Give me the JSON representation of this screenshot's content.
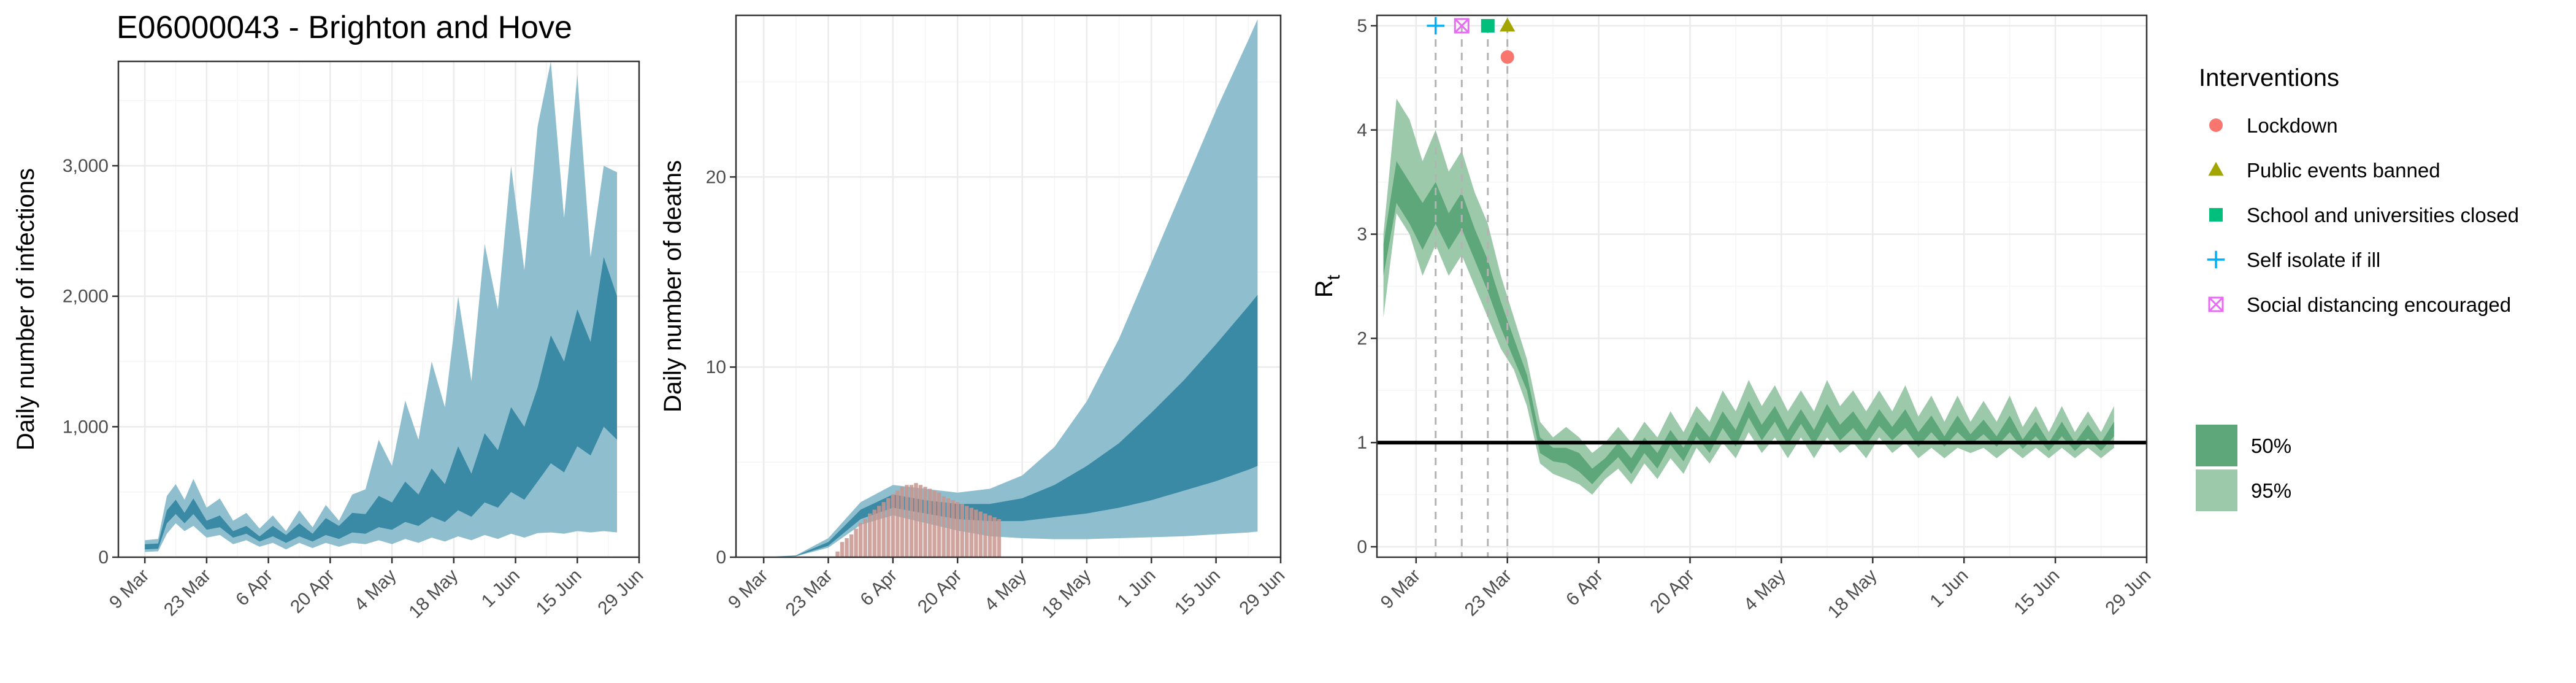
{
  "page_title": "E06000043 - Brighton and Hove",
  "colors": {
    "infections_band_95": "#8fbfcf",
    "infections_band_50": "#3a8aa6",
    "deaths_bar": "#c9958e",
    "rt_band_95": "#9cc9a9",
    "rt_band_50": "#5ea77a",
    "threshold_line": "#000000",
    "lockdown": "#F8766D",
    "public_events": "#A3A500",
    "school": "#00BF7D",
    "self_isolate": "#00B0F6",
    "social_distancing": "#E76BF3"
  },
  "chart_data": [
    {
      "id": "infections",
      "type": "area",
      "title": "E06000043 - Brighton and Hove",
      "xlabel": "",
      "ylabel": "Daily number of infections",
      "x_ticks": [
        "9 Mar",
        "23 Mar",
        "6 Apr",
        "20 Apr",
        "4 May",
        "18 May",
        "1 Jun",
        "15 Jun",
        "29 Jun"
      ],
      "xlim_days": [
        -6,
        112
      ],
      "y_ticks": [
        0,
        1000,
        2000,
        3000
      ],
      "y_tick_labels": [
        "0",
        "1,000",
        "2,000",
        "3,000"
      ],
      "ylim": [
        0,
        3800
      ],
      "series": [
        {
          "band": "95%",
          "x_days": [
            0,
            3,
            5,
            7,
            9,
            11,
            14,
            17,
            20,
            23,
            26,
            29,
            32,
            35,
            38,
            41,
            44,
            47,
            50,
            53,
            56,
            59,
            62,
            65,
            68,
            71,
            74,
            77,
            80,
            83,
            86,
            89,
            92,
            95,
            98,
            101,
            104,
            107
          ],
          "upper": [
            130,
            140,
            470,
            560,
            440,
            600,
            380,
            450,
            280,
            340,
            220,
            320,
            200,
            360,
            230,
            400,
            280,
            480,
            520,
            900,
            700,
            1200,
            900,
            1500,
            1150,
            2000,
            1350,
            2400,
            1900,
            3000,
            2200,
            3300,
            3800,
            2600,
            3700,
            2300,
            3000,
            2950
          ],
          "lower": [
            40,
            45,
            180,
            260,
            200,
            240,
            150,
            170,
            100,
            130,
            80,
            110,
            60,
            110,
            70,
            110,
            80,
            110,
            100,
            130,
            100,
            140,
            110,
            150,
            120,
            160,
            130,
            170,
            140,
            180,
            150,
            185,
            190,
            180,
            200,
            190,
            200,
            190
          ]
        },
        {
          "band": "50%",
          "x_days": [
            0,
            3,
            5,
            7,
            9,
            11,
            14,
            17,
            20,
            23,
            26,
            29,
            32,
            35,
            38,
            41,
            44,
            47,
            50,
            53,
            56,
            59,
            62,
            65,
            68,
            71,
            74,
            77,
            80,
            83,
            86,
            89,
            92,
            95,
            98,
            101,
            104,
            107
          ],
          "upper": [
            100,
            105,
            360,
            440,
            340,
            450,
            280,
            320,
            200,
            240,
            160,
            240,
            170,
            260,
            180,
            300,
            240,
            340,
            330,
            470,
            420,
            580,
            480,
            680,
            560,
            850,
            640,
            950,
            820,
            1150,
            1000,
            1300,
            1700,
            1500,
            1900,
            1650,
            2300,
            2000
          ],
          "lower": [
            60,
            65,
            260,
            330,
            260,
            330,
            210,
            230,
            150,
            180,
            120,
            160,
            110,
            160,
            120,
            170,
            140,
            190,
            180,
            230,
            210,
            270,
            240,
            310,
            270,
            360,
            310,
            420,
            380,
            500,
            440,
            580,
            720,
            650,
            850,
            780,
            1000,
            900
          ]
        }
      ]
    },
    {
      "id": "deaths",
      "type": "area",
      "xlabel": "",
      "ylabel": "Daily number of deaths",
      "x_ticks": [
        "9 Mar",
        "23 Mar",
        "6 Apr",
        "20 Apr",
        "4 May",
        "18 May",
        "1 Jun",
        "15 Jun",
        "29 Jun"
      ],
      "xlim_days": [
        -6,
        112
      ],
      "y_ticks": [
        0,
        10,
        20
      ],
      "y_tick_labels": [
        "0",
        "10",
        "20"
      ],
      "ylim": [
        0,
        28.5
      ],
      "series": [
        {
          "band": "95%",
          "x_days": [
            0,
            7,
            14,
            21,
            28,
            35,
            42,
            49,
            56,
            63,
            70,
            77,
            84,
            91,
            98,
            105,
            107
          ],
          "upper": [
            0,
            0.1,
            1.0,
            2.9,
            3.8,
            3.6,
            3.4,
            3.6,
            4.3,
            5.8,
            8.2,
            11.5,
            15.5,
            19.5,
            23.5,
            27.2,
            28.3
          ],
          "lower": [
            0,
            0.05,
            0.5,
            1.7,
            2.2,
            1.8,
            1.4,
            1.1,
            1.0,
            0.95,
            0.95,
            1.0,
            1.05,
            1.1,
            1.2,
            1.3,
            1.35
          ]
        },
        {
          "band": "50%",
          "x_days": [
            0,
            7,
            14,
            21,
            28,
            35,
            42,
            49,
            56,
            63,
            70,
            77,
            84,
            91,
            98,
            105,
            107
          ],
          "upper": [
            0,
            0.08,
            0.8,
            2.5,
            3.3,
            3.0,
            2.8,
            2.8,
            3.1,
            3.8,
            4.8,
            6.0,
            7.6,
            9.3,
            11.2,
            13.2,
            13.8
          ],
          "lower": [
            0,
            0.06,
            0.6,
            2.0,
            2.6,
            2.3,
            2.0,
            1.9,
            1.9,
            2.1,
            2.3,
            2.6,
            3.0,
            3.5,
            4.0,
            4.6,
            4.8
          ]
        }
      ],
      "observed_deaths": {
        "x_days": [
          16,
          17,
          18,
          19,
          20,
          21,
          22,
          23,
          24,
          25,
          26,
          27,
          28,
          29,
          30,
          31,
          32,
          33,
          34,
          35,
          36,
          37,
          38,
          39,
          40,
          41,
          42,
          43,
          44,
          45,
          46,
          47,
          48,
          49,
          50,
          51
        ],
        "values": [
          0.3,
          0.8,
          1.0,
          1.2,
          1.5,
          1.8,
          2.0,
          2.3,
          2.5,
          2.7,
          2.9,
          3.1,
          3.3,
          3.5,
          3.7,
          3.8,
          3.8,
          3.9,
          3.8,
          3.7,
          3.6,
          3.5,
          3.4,
          3.2,
          3.1,
          3.0,
          2.9,
          2.8,
          2.7,
          2.6,
          2.5,
          2.4,
          2.3,
          2.2,
          2.1,
          2.0
        ]
      }
    },
    {
      "id": "rt",
      "type": "area",
      "xlabel": "",
      "ylabel_main": "R",
      "ylabel_sub": "t",
      "x_ticks": [
        "9 Mar",
        "23 Mar",
        "6 Apr",
        "20 Apr",
        "4 May",
        "18 May",
        "1 Jun",
        "15 Jun",
        "29 Jun"
      ],
      "xlim_days": [
        -6,
        112
      ],
      "y_ticks": [
        0,
        1,
        2,
        3,
        4,
        5
      ],
      "y_tick_labels": [
        "0",
        "1",
        "2",
        "3",
        "4",
        "5"
      ],
      "ylim": [
        -0.1,
        5.1
      ],
      "threshold": 1,
      "series": [
        {
          "band": "95%",
          "x_days": [
            -5,
            -3,
            -1,
            1,
            3,
            5,
            7,
            9,
            11,
            13,
            15,
            17,
            19,
            21,
            23,
            25,
            27,
            29,
            31,
            33,
            35,
            37,
            39,
            41,
            43,
            45,
            47,
            49,
            51,
            53,
            55,
            57,
            59,
            61,
            63,
            65,
            67,
            69,
            71,
            73,
            75,
            77,
            79,
            81,
            83,
            85,
            87,
            89,
            91,
            93,
            95,
            97,
            99,
            101,
            103,
            105,
            107
          ],
          "upper": [
            3.0,
            4.3,
            4.1,
            3.7,
            4.0,
            3.6,
            3.8,
            3.4,
            3.1,
            2.6,
            2.2,
            1.8,
            1.2,
            1.05,
            1.15,
            1.05,
            0.9,
            1.0,
            1.15,
            1.0,
            1.2,
            1.05,
            1.3,
            1.1,
            1.35,
            1.2,
            1.5,
            1.3,
            1.6,
            1.35,
            1.55,
            1.3,
            1.5,
            1.3,
            1.6,
            1.35,
            1.5,
            1.3,
            1.5,
            1.3,
            1.55,
            1.25,
            1.45,
            1.2,
            1.45,
            1.2,
            1.4,
            1.2,
            1.45,
            1.15,
            1.35,
            1.1,
            1.35,
            1.1,
            1.3,
            1.1,
            1.35
          ],
          "lower": [
            2.2,
            3.2,
            3.0,
            2.6,
            2.9,
            2.6,
            2.8,
            2.5,
            2.2,
            1.9,
            1.7,
            1.35,
            0.8,
            0.7,
            0.65,
            0.6,
            0.5,
            0.65,
            0.75,
            0.6,
            0.8,
            0.65,
            0.85,
            0.7,
            0.95,
            0.8,
            1.0,
            0.85,
            1.1,
            0.9,
            1.05,
            0.85,
            1.05,
            0.85,
            1.05,
            0.9,
            1.0,
            0.85,
            1.05,
            0.9,
            1.0,
            0.85,
            0.95,
            0.85,
            0.95,
            0.9,
            0.95,
            0.85,
            0.95,
            0.85,
            0.95,
            0.85,
            0.95,
            0.85,
            0.95,
            0.85,
            0.95
          ]
        },
        {
          "band": "50%",
          "x_days": [
            -5,
            -3,
            -1,
            1,
            3,
            5,
            7,
            9,
            11,
            13,
            15,
            17,
            19,
            21,
            23,
            25,
            27,
            29,
            31,
            33,
            35,
            37,
            39,
            41,
            43,
            45,
            47,
            49,
            51,
            53,
            55,
            57,
            59,
            61,
            63,
            65,
            67,
            69,
            71,
            73,
            75,
            77,
            79,
            81,
            83,
            85,
            87,
            89,
            91,
            93,
            95,
            97,
            99,
            101,
            103,
            105,
            107
          ],
          "upper": [
            2.9,
            3.7,
            3.5,
            3.3,
            3.5,
            3.2,
            3.4,
            3.05,
            2.75,
            2.35,
            2.0,
            1.65,
            1.05,
            0.95,
            0.95,
            0.9,
            0.75,
            0.85,
            1.0,
            0.85,
            1.05,
            0.9,
            1.12,
            0.95,
            1.2,
            1.05,
            1.3,
            1.12,
            1.4,
            1.17,
            1.35,
            1.12,
            1.32,
            1.12,
            1.37,
            1.17,
            1.3,
            1.12,
            1.32,
            1.15,
            1.32,
            1.1,
            1.26,
            1.06,
            1.26,
            1.08,
            1.22,
            1.06,
            1.26,
            1.03,
            1.2,
            1.0,
            1.2,
            1.0,
            1.17,
            1.0,
            1.2
          ],
          "lower": [
            2.6,
            3.3,
            3.1,
            2.85,
            3.1,
            2.85,
            3.05,
            2.75,
            2.45,
            2.1,
            1.8,
            1.5,
            0.9,
            0.82,
            0.8,
            0.72,
            0.6,
            0.74,
            0.86,
            0.7,
            0.9,
            0.75,
            0.98,
            0.82,
            1.06,
            0.9,
            1.14,
            0.96,
            1.24,
            1.02,
            1.2,
            0.98,
            1.18,
            0.98,
            1.2,
            1.02,
            1.14,
            0.98,
            1.16,
            1.02,
            1.14,
            0.96,
            1.1,
            0.96,
            1.1,
            0.98,
            1.08,
            0.96,
            1.1,
            0.94,
            1.06,
            0.92,
            1.06,
            0.92,
            1.04,
            0.92,
            1.06
          ]
        }
      ],
      "interventions": [
        {
          "name": "Self isolate if ill",
          "x_day": 3,
          "y": 5.0,
          "shape": "plus",
          "color": "#00B0F6"
        },
        {
          "name": "Social distancing encouraged",
          "x_day": 7,
          "y": 5.0,
          "shape": "square-x",
          "color": "#E76BF3"
        },
        {
          "name": "School and universities closed",
          "x_day": 11,
          "y": 5.0,
          "shape": "square",
          "color": "#00BF7D"
        },
        {
          "name": "Public events banned",
          "x_day": 14,
          "y": 5.0,
          "shape": "triangle",
          "color": "#A3A500"
        },
        {
          "name": "Lockdown",
          "x_day": 14,
          "y": 4.7,
          "shape": "circle",
          "color": "#F8766D"
        }
      ],
      "dashed_lines_x_days": [
        3,
        7,
        11,
        14
      ]
    }
  ],
  "legend": {
    "title": "Interventions",
    "items": [
      {
        "label": "Lockdown",
        "shape": "circle",
        "color": "#F8766D"
      },
      {
        "label": "Public events banned",
        "shape": "triangle",
        "color": "#A3A500"
      },
      {
        "label": "School and universities closed",
        "shape": "square",
        "color": "#00BF7D"
      },
      {
        "label": "Self isolate if ill",
        "shape": "plus",
        "color": "#00B0F6"
      },
      {
        "label": "Social distancing encouraged",
        "shape": "square-x",
        "color": "#E76BF3"
      }
    ],
    "bands": [
      {
        "label": "50%",
        "color": "#5ea77a"
      },
      {
        "label": "95%",
        "color": "#9cc9a9"
      }
    ]
  }
}
